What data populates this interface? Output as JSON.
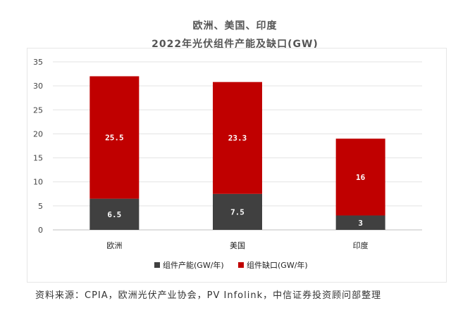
{
  "title_line1": "欧洲、美国、印度",
  "title_line2": "2022年光伏组件产能及缺口(GW)",
  "source": "资料来源：CPIA，欧洲光伏产业协会，PV Infolink，中信证券投资顾问部整理",
  "chart_data": {
    "type": "bar",
    "stacked": true,
    "categories": [
      "欧洲",
      "美国",
      "印度"
    ],
    "series": [
      {
        "name": "组件产能(GW/年)",
        "values": [
          6.5,
          7.5,
          3
        ],
        "color": "#404040"
      },
      {
        "name": "组件缺口(GW/年)",
        "values": [
          25.5,
          23.3,
          16
        ],
        "color": "#c00000"
      }
    ],
    "value_labels": [
      [
        "6.5",
        "7.5",
        "3"
      ],
      [
        "25.5",
        "23.3",
        "16"
      ]
    ],
    "ylim": [
      0,
      35
    ],
    "yticks": [
      "0",
      "5",
      "10",
      "15",
      "20",
      "25",
      "30",
      "35"
    ],
    "grid": true,
    "legend_position": "bottom"
  }
}
